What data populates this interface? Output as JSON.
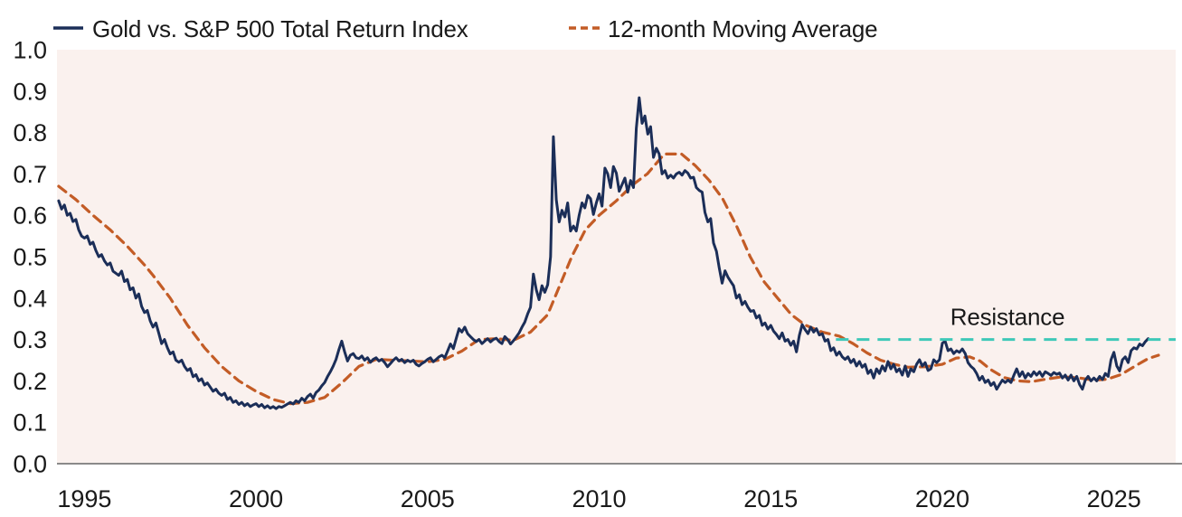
{
  "page": {
    "background_color": "#ffffff",
    "plot_background_color": "#faf1ee",
    "axis_line_color": "#8a8a8a",
    "text_color": "#1a1a1a"
  },
  "legend": {
    "items": [
      {
        "label": "Gold vs. S&P 500 Total Return Index",
        "color": "#1b2e58",
        "style": "solid"
      },
      {
        "label": "12-month Moving Average",
        "color": "#c35c26",
        "style": "dashed"
      }
    ]
  },
  "chart_data": {
    "type": "line",
    "title": "",
    "xlabel": "",
    "ylabel": "",
    "grid": false,
    "legend_position": "top",
    "x_axis": {
      "tick_labels": [
        "1995",
        "2000",
        "2005",
        "2010",
        "2015",
        "2020",
        "2025"
      ],
      "tick_values": [
        1995,
        2000,
        2005,
        2010,
        2015,
        2020,
        2025
      ],
      "range": [
        1994.2,
        2026.8
      ]
    },
    "y_axis": {
      "tick_labels": [
        "0.0",
        "0.1",
        "0.2",
        "0.3",
        "0.4",
        "0.5",
        "0.6",
        "0.7",
        "0.8",
        "0.9",
        "1.0"
      ],
      "tick_values": [
        0.0,
        0.1,
        0.2,
        0.3,
        0.4,
        0.5,
        0.6,
        0.7,
        0.8,
        0.9,
        1.0
      ],
      "range": [
        0,
        1
      ]
    },
    "series": [
      {
        "name": "Gold vs. S&P 500 Total Return Index",
        "color": "#1b2e58",
        "style": "solid",
        "start_year": 1994.25,
        "interval_years": 0.0833333,
        "values": [
          0.635,
          0.615,
          0.625,
          0.6,
          0.605,
          0.585,
          0.59,
          0.565,
          0.55,
          0.545,
          0.55,
          0.53,
          0.535,
          0.515,
          0.5,
          0.505,
          0.49,
          0.48,
          0.485,
          0.465,
          0.46,
          0.455,
          0.465,
          0.44,
          0.445,
          0.42,
          0.425,
          0.4,
          0.41,
          0.38,
          0.365,
          0.37,
          0.345,
          0.33,
          0.34,
          0.315,
          0.29,
          0.3,
          0.28,
          0.265,
          0.27,
          0.25,
          0.245,
          0.25,
          0.235,
          0.225,
          0.23,
          0.21,
          0.215,
          0.2,
          0.205,
          0.19,
          0.195,
          0.185,
          0.175,
          0.18,
          0.17,
          0.165,
          0.17,
          0.155,
          0.16,
          0.148,
          0.152,
          0.143,
          0.148,
          0.14,
          0.145,
          0.138,
          0.142,
          0.145,
          0.138,
          0.143,
          0.135,
          0.14,
          0.134,
          0.138,
          0.133,
          0.138,
          0.136,
          0.14,
          0.144,
          0.148,
          0.144,
          0.152,
          0.148,
          0.158,
          0.152,
          0.162,
          0.168,
          0.158,
          0.172,
          0.178,
          0.188,
          0.196,
          0.21,
          0.222,
          0.236,
          0.252,
          0.276,
          0.296,
          0.27,
          0.248,
          0.262,
          0.266,
          0.256,
          0.254,
          0.26,
          0.25,
          0.256,
          0.245,
          0.252,
          0.256,
          0.248,
          0.252,
          0.244,
          0.234,
          0.242,
          0.25,
          0.256,
          0.248,
          0.252,
          0.244,
          0.25,
          0.246,
          0.25,
          0.24,
          0.236,
          0.242,
          0.246,
          0.252,
          0.256,
          0.246,
          0.252,
          0.258,
          0.262,
          0.256,
          0.272,
          0.289,
          0.278,
          0.302,
          0.326,
          0.318,
          0.33,
          0.314,
          0.307,
          0.3,
          0.295,
          0.3,
          0.29,
          0.296,
          0.302,
          0.294,
          0.3,
          0.303,
          0.295,
          0.29,
          0.307,
          0.3,
          0.289,
          0.297,
          0.306,
          0.316,
          0.33,
          0.342,
          0.362,
          0.378,
          0.458,
          0.42,
          0.396,
          0.43,
          0.414,
          0.432,
          0.5,
          0.79,
          0.638,
          0.584,
          0.612,
          0.596,
          0.63,
          0.562,
          0.574,
          0.562,
          0.6,
          0.63,
          0.618,
          0.648,
          0.64,
          0.602,
          0.63,
          0.652,
          0.622,
          0.714,
          0.7,
          0.667,
          0.718,
          0.702,
          0.658,
          0.674,
          0.69,
          0.656,
          0.684,
          0.667,
          0.81,
          0.884,
          0.822,
          0.84,
          0.796,
          0.814,
          0.74,
          0.762,
          0.748,
          0.7,
          0.708,
          0.69,
          0.697,
          0.69,
          0.7,
          0.704,
          0.697,
          0.708,
          0.702,
          0.69,
          0.692,
          0.667,
          0.66,
          0.656,
          0.607,
          0.584,
          0.592,
          0.533,
          0.513,
          0.473,
          0.436,
          0.466,
          0.451,
          0.44,
          0.43,
          0.4,
          0.408,
          0.384,
          0.392,
          0.378,
          0.368,
          0.37,
          0.352,
          0.358,
          0.334,
          0.34,
          0.325,
          0.334,
          0.32,
          0.312,
          0.302,
          0.316,
          0.296,
          0.3,
          0.286,
          0.296,
          0.27,
          0.31,
          0.336,
          0.324,
          0.314,
          0.33,
          0.318,
          0.326,
          0.311,
          0.314,
          0.296,
          0.3,
          0.273,
          0.28,
          0.262,
          0.27,
          0.258,
          0.252,
          0.258,
          0.244,
          0.252,
          0.236,
          0.247,
          0.233,
          0.24,
          0.218,
          0.226,
          0.207,
          0.229,
          0.218,
          0.236,
          0.224,
          0.247,
          0.229,
          0.24,
          0.222,
          0.229,
          0.214,
          0.236,
          0.211,
          0.229,
          0.222,
          0.24,
          0.251,
          0.236,
          0.244,
          0.225,
          0.229,
          0.251,
          0.244,
          0.251,
          0.291,
          0.296,
          0.273,
          0.277,
          0.266,
          0.273,
          0.269,
          0.277,
          0.266,
          0.244,
          0.235,
          0.229,
          0.218,
          0.202,
          0.211,
          0.196,
          0.202,
          0.189,
          0.196,
          0.18,
          0.191,
          0.202,
          0.196,
          0.202,
          0.196,
          0.213,
          0.229,
          0.211,
          0.222,
          0.207,
          0.218,
          0.211,
          0.222,
          0.214,
          0.222,
          0.211,
          0.222,
          0.218,
          0.213,
          0.22,
          0.216,
          0.219,
          0.207,
          0.214,
          0.202,
          0.214,
          0.2,
          0.211,
          0.191,
          0.18,
          0.202,
          0.211,
          0.2,
          0.207,
          0.2,
          0.211,
          0.203,
          0.218,
          0.211,
          0.251,
          0.269,
          0.236,
          0.224,
          0.251,
          0.258,
          0.244,
          0.273,
          0.28,
          0.277,
          0.289,
          0.285,
          0.295,
          0.302
        ]
      },
      {
        "name": "12-month Moving Average",
        "color": "#c35c26",
        "style": "dashed",
        "points": [
          [
            1994.25,
            0.67
          ],
          [
            1994.75,
            0.638
          ],
          [
            1995.25,
            0.6
          ],
          [
            1995.75,
            0.565
          ],
          [
            1996.25,
            0.525
          ],
          [
            1996.75,
            0.48
          ],
          [
            1997.0,
            0.455
          ],
          [
            1997.5,
            0.4
          ],
          [
            1998.0,
            0.335
          ],
          [
            1998.5,
            0.28
          ],
          [
            1999.0,
            0.235
          ],
          [
            1999.5,
            0.2
          ],
          [
            2000.0,
            0.175
          ],
          [
            2000.5,
            0.155
          ],
          [
            2001.0,
            0.145
          ],
          [
            2001.5,
            0.148
          ],
          [
            2002.0,
            0.16
          ],
          [
            2002.5,
            0.195
          ],
          [
            2003.0,
            0.235
          ],
          [
            2003.5,
            0.252
          ],
          [
            2004.0,
            0.25
          ],
          [
            2004.5,
            0.248
          ],
          [
            2005.0,
            0.246
          ],
          [
            2005.5,
            0.252
          ],
          [
            2006.0,
            0.272
          ],
          [
            2006.5,
            0.3
          ],
          [
            2007.0,
            0.302
          ],
          [
            2007.5,
            0.298
          ],
          [
            2008.0,
            0.318
          ],
          [
            2008.5,
            0.36
          ],
          [
            2008.9,
            0.44
          ],
          [
            2009.2,
            0.5
          ],
          [
            2009.6,
            0.565
          ],
          [
            2010.0,
            0.6
          ],
          [
            2010.5,
            0.635
          ],
          [
            2011.0,
            0.675
          ],
          [
            2011.4,
            0.7
          ],
          [
            2011.9,
            0.748
          ],
          [
            2012.4,
            0.748
          ],
          [
            2012.8,
            0.72
          ],
          [
            2013.2,
            0.685
          ],
          [
            2013.6,
            0.64
          ],
          [
            2014.0,
            0.575
          ],
          [
            2014.4,
            0.5
          ],
          [
            2014.8,
            0.44
          ],
          [
            2015.2,
            0.4
          ],
          [
            2015.6,
            0.36
          ],
          [
            2016.0,
            0.335
          ],
          [
            2016.5,
            0.318
          ],
          [
            2017.0,
            0.308
          ],
          [
            2017.4,
            0.29
          ],
          [
            2017.8,
            0.268
          ],
          [
            2018.2,
            0.25
          ],
          [
            2018.6,
            0.24
          ],
          [
            2019.0,
            0.233
          ],
          [
            2019.5,
            0.234
          ],
          [
            2020.0,
            0.24
          ],
          [
            2020.4,
            0.255
          ],
          [
            2020.8,
            0.258
          ],
          [
            2021.1,
            0.248
          ],
          [
            2021.4,
            0.228
          ],
          [
            2021.8,
            0.208
          ],
          [
            2022.2,
            0.2
          ],
          [
            2022.6,
            0.198
          ],
          [
            2023.0,
            0.204
          ],
          [
            2023.5,
            0.21
          ],
          [
            2024.0,
            0.207
          ],
          [
            2024.4,
            0.202
          ],
          [
            2024.8,
            0.204
          ],
          [
            2025.2,
            0.215
          ],
          [
            2025.6,
            0.235
          ],
          [
            2026.0,
            0.254
          ],
          [
            2026.3,
            0.262
          ]
        ]
      }
    ],
    "annotations": [
      {
        "type": "hline",
        "label": "Resistance",
        "value": 0.3,
        "color": "#3ec8b8",
        "style": "dashed",
        "x_start": 2016.9,
        "x_end": 2026.8,
        "label_x": 2021.9,
        "label_y": 0.355
      }
    ]
  }
}
